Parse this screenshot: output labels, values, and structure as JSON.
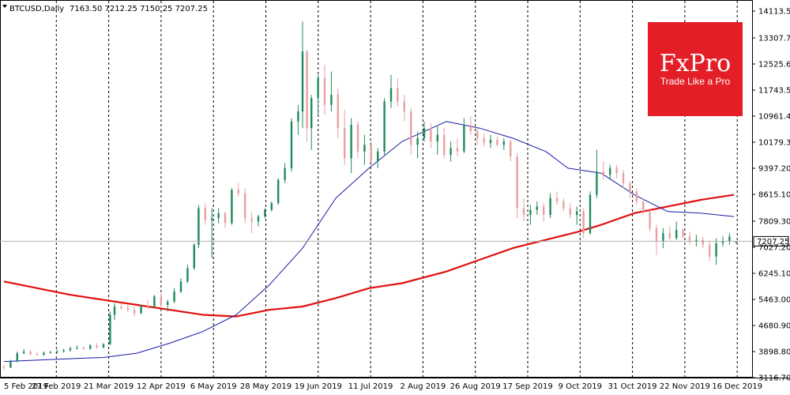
{
  "header": {
    "symbol": "BTCUSD,Daily",
    "ohlc": "7163.50 7212.25 7150.25 7207.25"
  },
  "logo": {
    "name": "FxPro",
    "tagline": "Trade Like a Pro",
    "color": "#e41e26"
  },
  "current_price_label": "7207.25",
  "colors": {
    "bull_candle": "#1f8a5b",
    "bear_candle": "#e8a0a0",
    "ma_fast": "#1a1aa8",
    "ma_slow": "#e01010",
    "grid": "#000000"
  },
  "chart_data": {
    "type": "candlestick",
    "title": "BTCUSD,Daily",
    "y_ticks": [
      "14113.50",
      "13307.70",
      "12525.60",
      "11743.50",
      "10961.40",
      "10179.30",
      "9397.20",
      "8615.10",
      "7809.30",
      "7027.20",
      "6245.10",
      "5463.00",
      "4680.90",
      "3898.80",
      "3116.70"
    ],
    "ylim": [
      3116.7,
      14113.5
    ],
    "x_ticks": [
      "5 Feb 2019",
      "27 Feb 2019",
      "21 Mar 2019",
      "12 Apr 2019",
      "6 May 2019",
      "28 May 2019",
      "19 Jun 2019",
      "11 Jul 2019",
      "2 Aug 2019",
      "26 Aug 2019",
      "17 Sep 2019",
      "9 Oct 2019",
      "31 Oct 2019",
      "22 Nov 2019",
      "16 Dec 2019"
    ],
    "grid": "vertical-dashed",
    "ma_fast": {
      "x_day": [
        0,
        18,
        36,
        45,
        60,
        75,
        90,
        105,
        120,
        135,
        150,
        165,
        180,
        200,
        215,
        230,
        245,
        255,
        270,
        285,
        300,
        315,
        330
      ],
      "y": [
        3600,
        3650,
        3700,
        3720,
        3850,
        4150,
        4500,
        5000,
        5900,
        7000,
        8500,
        9400,
        10200,
        10800,
        10600,
        10300,
        9900,
        9400,
        9250,
        8600,
        8100,
        8050,
        7950
      ]
    },
    "ma_slow": {
      "x_day": [
        0,
        30,
        60,
        90,
        105,
        120,
        135,
        150,
        165,
        180,
        200,
        215,
        230,
        245,
        260,
        270,
        285,
        300,
        315,
        330
      ],
      "y": [
        6000,
        5600,
        5300,
        5000,
        4950,
        5150,
        5250,
        5500,
        5800,
        5950,
        6300,
        6650,
        7000,
        7250,
        7500,
        7700,
        8050,
        8250,
        8450,
        8600
      ]
    },
    "candles": [
      {
        "d": 0,
        "o": 3450,
        "h": 3500,
        "l": 3350,
        "c": 3420
      },
      {
        "d": 3,
        "o": 3420,
        "h": 3650,
        "l": 3400,
        "c": 3600
      },
      {
        "d": 6,
        "o": 3600,
        "h": 3900,
        "l": 3580,
        "c": 3850
      },
      {
        "d": 9,
        "o": 3850,
        "h": 3980,
        "l": 3820,
        "c": 3900
      },
      {
        "d": 12,
        "o": 3900,
        "h": 3940,
        "l": 3780,
        "c": 3820
      },
      {
        "d": 15,
        "o": 3820,
        "h": 3880,
        "l": 3760,
        "c": 3800
      },
      {
        "d": 18,
        "o": 3800,
        "h": 3900,
        "l": 3780,
        "c": 3860
      },
      {
        "d": 21,
        "o": 3860,
        "h": 3920,
        "l": 3830,
        "c": 3880
      },
      {
        "d": 24,
        "o": 3880,
        "h": 3960,
        "l": 3850,
        "c": 3900
      },
      {
        "d": 27,
        "o": 3900,
        "h": 3980,
        "l": 3860,
        "c": 3940
      },
      {
        "d": 30,
        "o": 3940,
        "h": 4050,
        "l": 3900,
        "c": 3990
      },
      {
        "d": 33,
        "o": 3990,
        "h": 4080,
        "l": 3960,
        "c": 4010
      },
      {
        "d": 36,
        "o": 4010,
        "h": 4050,
        "l": 3950,
        "c": 3980
      },
      {
        "d": 39,
        "o": 3980,
        "h": 4120,
        "l": 3960,
        "c": 4080
      },
      {
        "d": 42,
        "o": 4080,
        "h": 4150,
        "l": 3980,
        "c": 4020
      },
      {
        "d": 45,
        "o": 4020,
        "h": 4150,
        "l": 4000,
        "c": 4120
      },
      {
        "d": 48,
        "o": 4120,
        "h": 5100,
        "l": 4100,
        "c": 5000
      },
      {
        "d": 50,
        "o": 5000,
        "h": 5350,
        "l": 4850,
        "c": 5250
      },
      {
        "d": 53,
        "o": 5250,
        "h": 5350,
        "l": 5150,
        "c": 5200
      },
      {
        "d": 56,
        "o": 5200,
        "h": 5300,
        "l": 5080,
        "c": 5150
      },
      {
        "d": 59,
        "o": 5150,
        "h": 5250,
        "l": 4950,
        "c": 5050
      },
      {
        "d": 62,
        "o": 5050,
        "h": 5300,
        "l": 5020,
        "c": 5280
      },
      {
        "d": 65,
        "o": 5280,
        "h": 5450,
        "l": 5180,
        "c": 5250
      },
      {
        "d": 68,
        "o": 5250,
        "h": 5600,
        "l": 5200,
        "c": 5550
      },
      {
        "d": 71,
        "o": 5550,
        "h": 5650,
        "l": 5250,
        "c": 5300
      },
      {
        "d": 74,
        "o": 5300,
        "h": 5450,
        "l": 5100,
        "c": 5400
      },
      {
        "d": 77,
        "o": 5400,
        "h": 5800,
        "l": 5350,
        "c": 5700
      },
      {
        "d": 80,
        "o": 5700,
        "h": 6100,
        "l": 5650,
        "c": 6000
      },
      {
        "d": 83,
        "o": 6000,
        "h": 6500,
        "l": 5950,
        "c": 6400
      },
      {
        "d": 86,
        "o": 6400,
        "h": 7150,
        "l": 6350,
        "c": 7100
      },
      {
        "d": 88,
        "o": 7100,
        "h": 8300,
        "l": 7000,
        "c": 8200
      },
      {
        "d": 91,
        "o": 8200,
        "h": 8350,
        "l": 7700,
        "c": 7850
      },
      {
        "d": 94,
        "o": 7850,
        "h": 8200,
        "l": 6700,
        "c": 7900
      },
      {
        "d": 97,
        "o": 7900,
        "h": 8200,
        "l": 7750,
        "c": 8050
      },
      {
        "d": 100,
        "o": 8050,
        "h": 8100,
        "l": 7600,
        "c": 7750
      },
      {
        "d": 103,
        "o": 7750,
        "h": 8800,
        "l": 7700,
        "c": 8750
      },
      {
        "d": 106,
        "o": 8750,
        "h": 8950,
        "l": 8550,
        "c": 8650
      },
      {
        "d": 109,
        "o": 8650,
        "h": 8800,
        "l": 7750,
        "c": 7900
      },
      {
        "d": 112,
        "o": 7900,
        "h": 8100,
        "l": 7450,
        "c": 7800
      },
      {
        "d": 115,
        "o": 7800,
        "h": 8000,
        "l": 7650,
        "c": 7950
      },
      {
        "d": 118,
        "o": 7950,
        "h": 8200,
        "l": 7900,
        "c": 8150
      },
      {
        "d": 121,
        "o": 8150,
        "h": 8400,
        "l": 8100,
        "c": 8350
      },
      {
        "d": 124,
        "o": 8350,
        "h": 9100,
        "l": 8300,
        "c": 9050
      },
      {
        "d": 127,
        "o": 9050,
        "h": 9550,
        "l": 8950,
        "c": 9400
      },
      {
        "d": 130,
        "o": 9400,
        "h": 10900,
        "l": 9300,
        "c": 10800
      },
      {
        "d": 133,
        "o": 10800,
        "h": 11300,
        "l": 10400,
        "c": 11100
      },
      {
        "d": 135,
        "o": 11100,
        "h": 13800,
        "l": 10600,
        "c": 12900
      },
      {
        "d": 137,
        "o": 12900,
        "h": 12950,
        "l": 10200,
        "c": 10600
      },
      {
        "d": 139,
        "o": 10600,
        "h": 11600,
        "l": 9950,
        "c": 11500
      },
      {
        "d": 142,
        "o": 11500,
        "h": 12200,
        "l": 11000,
        "c": 12100
      },
      {
        "d": 145,
        "o": 12100,
        "h": 12500,
        "l": 11000,
        "c": 11300
      },
      {
        "d": 148,
        "o": 11300,
        "h": 12300,
        "l": 11100,
        "c": 11600
      },
      {
        "d": 151,
        "o": 11600,
        "h": 11800,
        "l": 10300,
        "c": 10600
      },
      {
        "d": 154,
        "o": 10600,
        "h": 11150,
        "l": 9500,
        "c": 9700
      },
      {
        "d": 157,
        "o": 9700,
        "h": 10900,
        "l": 9250,
        "c": 10700
      },
      {
        "d": 160,
        "o": 10700,
        "h": 10800,
        "l": 9700,
        "c": 9900
      },
      {
        "d": 163,
        "o": 9900,
        "h": 10400,
        "l": 9500,
        "c": 10100
      },
      {
        "d": 166,
        "o": 10100,
        "h": 10200,
        "l": 9450,
        "c": 9600
      },
      {
        "d": 169,
        "o": 9600,
        "h": 10000,
        "l": 9400,
        "c": 9900
      },
      {
        "d": 172,
        "o": 9900,
        "h": 11500,
        "l": 9800,
        "c": 11400
      },
      {
        "d": 175,
        "o": 11400,
        "h": 12200,
        "l": 11200,
        "c": 11800
      },
      {
        "d": 178,
        "o": 11800,
        "h": 12100,
        "l": 11250,
        "c": 11400
      },
      {
        "d": 181,
        "o": 11400,
        "h": 11600,
        "l": 10800,
        "c": 11100
      },
      {
        "d": 184,
        "o": 11100,
        "h": 11200,
        "l": 9800,
        "c": 10100
      },
      {
        "d": 187,
        "o": 10100,
        "h": 10500,
        "l": 9700,
        "c": 10300
      },
      {
        "d": 190,
        "o": 10300,
        "h": 10800,
        "l": 10200,
        "c": 10600
      },
      {
        "d": 193,
        "o": 10600,
        "h": 10750,
        "l": 10000,
        "c": 10200
      },
      {
        "d": 196,
        "o": 10200,
        "h": 10650,
        "l": 9800,
        "c": 10400
      },
      {
        "d": 199,
        "o": 10400,
        "h": 10600,
        "l": 9700,
        "c": 9800
      },
      {
        "d": 202,
        "o": 9800,
        "h": 10200,
        "l": 9600,
        "c": 10000
      },
      {
        "d": 205,
        "o": 10000,
        "h": 10300,
        "l": 9750,
        "c": 9900
      },
      {
        "d": 208,
        "o": 9900,
        "h": 10900,
        "l": 9850,
        "c": 10700
      },
      {
        "d": 211,
        "o": 10700,
        "h": 10950,
        "l": 10400,
        "c": 10500
      },
      {
        "d": 214,
        "o": 10500,
        "h": 10600,
        "l": 10100,
        "c": 10300
      },
      {
        "d": 217,
        "o": 10300,
        "h": 10450,
        "l": 10050,
        "c": 10150
      },
      {
        "d": 220,
        "o": 10150,
        "h": 10400,
        "l": 10000,
        "c": 10250
      },
      {
        "d": 223,
        "o": 10250,
        "h": 10350,
        "l": 10050,
        "c": 10100
      },
      {
        "d": 226,
        "o": 10100,
        "h": 10300,
        "l": 9950,
        "c": 10200
      },
      {
        "d": 229,
        "o": 10200,
        "h": 10250,
        "l": 9600,
        "c": 9750
      },
      {
        "d": 232,
        "o": 9750,
        "h": 9850,
        "l": 7900,
        "c": 8200
      },
      {
        "d": 235,
        "o": 8200,
        "h": 8500,
        "l": 7800,
        "c": 8000
      },
      {
        "d": 238,
        "o": 8000,
        "h": 8300,
        "l": 7700,
        "c": 8150
      },
      {
        "d": 241,
        "o": 8150,
        "h": 8400,
        "l": 8000,
        "c": 8250
      },
      {
        "d": 244,
        "o": 8250,
        "h": 8350,
        "l": 7800,
        "c": 8000
      },
      {
        "d": 247,
        "o": 8000,
        "h": 8650,
        "l": 7900,
        "c": 8500
      },
      {
        "d": 250,
        "o": 8500,
        "h": 8700,
        "l": 8300,
        "c": 8400
      },
      {
        "d": 253,
        "o": 8400,
        "h": 8500,
        "l": 8100,
        "c": 8200
      },
      {
        "d": 256,
        "o": 8200,
        "h": 8350,
        "l": 7900,
        "c": 8000
      },
      {
        "d": 259,
        "o": 8000,
        "h": 8250,
        "l": 7700,
        "c": 8100
      },
      {
        "d": 262,
        "o": 8100,
        "h": 8200,
        "l": 7300,
        "c": 7450
      },
      {
        "d": 265,
        "o": 7450,
        "h": 8700,
        "l": 7400,
        "c": 8600
      },
      {
        "d": 268,
        "o": 8600,
        "h": 9950,
        "l": 8500,
        "c": 9300
      },
      {
        "d": 271,
        "o": 9300,
        "h": 9600,
        "l": 9050,
        "c": 9200
      },
      {
        "d": 274,
        "o": 9200,
        "h": 9500,
        "l": 9050,
        "c": 9400
      },
      {
        "d": 277,
        "o": 9400,
        "h": 9500,
        "l": 9100,
        "c": 9250
      },
      {
        "d": 280,
        "o": 9250,
        "h": 9350,
        "l": 8800,
        "c": 8950
      },
      {
        "d": 283,
        "o": 8950,
        "h": 9000,
        "l": 8500,
        "c": 8700
      },
      {
        "d": 286,
        "o": 8700,
        "h": 8800,
        "l": 8300,
        "c": 8400
      },
      {
        "d": 289,
        "o": 8400,
        "h": 8500,
        "l": 8000,
        "c": 8100
      },
      {
        "d": 292,
        "o": 8100,
        "h": 8200,
        "l": 7500,
        "c": 7600
      },
      {
        "d": 295,
        "o": 7600,
        "h": 7700,
        "l": 6800,
        "c": 7200
      },
      {
        "d": 298,
        "o": 7200,
        "h": 7600,
        "l": 7000,
        "c": 7450
      },
      {
        "d": 301,
        "o": 7450,
        "h": 7650,
        "l": 7250,
        "c": 7300
      },
      {
        "d": 304,
        "o": 7300,
        "h": 7800,
        "l": 7250,
        "c": 7550
      },
      {
        "d": 307,
        "o": 7550,
        "h": 7600,
        "l": 7300,
        "c": 7350
      },
      {
        "d": 310,
        "o": 7350,
        "h": 7500,
        "l": 7100,
        "c": 7200
      },
      {
        "d": 313,
        "o": 7200,
        "h": 7400,
        "l": 7050,
        "c": 7250
      },
      {
        "d": 316,
        "o": 7250,
        "h": 7350,
        "l": 7000,
        "c": 7100
      },
      {
        "d": 319,
        "o": 7100,
        "h": 7200,
        "l": 6600,
        "c": 6750
      },
      {
        "d": 322,
        "o": 6750,
        "h": 7300,
        "l": 6500,
        "c": 7150
      },
      {
        "d": 325,
        "o": 7150,
        "h": 7350,
        "l": 7050,
        "c": 7200
      },
      {
        "d": 328,
        "o": 7200,
        "h": 7450,
        "l": 7100,
        "c": 7350
      },
      {
        "d": 331,
        "o": 7163.5,
        "h": 7212.25,
        "l": 7150.25,
        "c": 7207.25
      }
    ]
  }
}
